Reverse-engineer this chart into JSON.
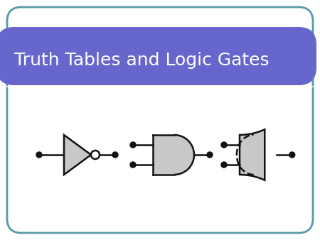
{
  "title": "Truth Tables and Logic Gates",
  "title_color": "#ffffff",
  "title_bg_color": "#6666cc",
  "bg_color": "#ffffff",
  "border_color": "#5599aa",
  "gate_fill": "#c8c8c8",
  "gate_edge": "#111111",
  "gate_line_color": "#111111",
  "dot_color": "#111111",
  "title_fontsize": 18,
  "fig_width": 4.5,
  "fig_height": 3.38,
  "dpi": 100
}
